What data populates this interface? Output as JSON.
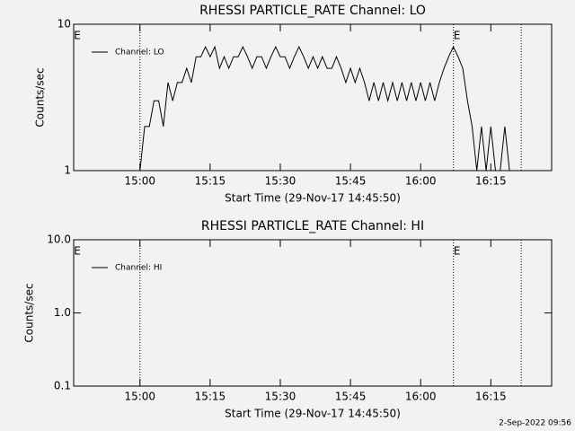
{
  "chart_data": [
    {
      "type": "line",
      "title": "RHESSI PARTICLE_RATE Channel: LO",
      "xlabel": "Start Time (29-Nov-17 14:45:50)",
      "ylabel": "Counts/sec",
      "yscale": "log",
      "ylim": [
        1,
        10
      ],
      "yticks": [
        1,
        10
      ],
      "xlim": [
        "14:45:50",
        "16:28"
      ],
      "xticks": [
        "15:00",
        "15:15",
        "15:30",
        "15:45",
        "16:00",
        "16:15"
      ],
      "vlines": [
        "15:00",
        "16:07",
        "16:21:30"
      ],
      "annotations": [
        {
          "text": "E",
          "x": "14:45:50"
        },
        {
          "text": "E",
          "x": "16:07"
        }
      ],
      "legend": "upper left",
      "x": [
        "15:00",
        "15:01",
        "15:02",
        "15:03",
        "15:04",
        "15:05",
        "15:06",
        "15:07",
        "15:08",
        "15:09",
        "15:10",
        "15:11",
        "15:12",
        "15:13",
        "15:14",
        "15:15",
        "15:16",
        "15:17",
        "15:18",
        "15:19",
        "15:20",
        "15:21",
        "15:22",
        "15:23",
        "15:24",
        "15:25",
        "15:26",
        "15:27",
        "15:28",
        "15:29",
        "15:30",
        "15:31",
        "15:32",
        "15:33",
        "15:34",
        "15:35",
        "15:36",
        "15:37",
        "15:38",
        "15:39",
        "15:40",
        "15:41",
        "15:42",
        "15:43",
        "15:44",
        "15:45",
        "15:46",
        "15:47",
        "15:48",
        "15:49",
        "15:50",
        "15:51",
        "15:52",
        "15:53",
        "15:54",
        "15:55",
        "15:56",
        "15:57",
        "15:58",
        "15:59",
        "16:00",
        "16:01",
        "16:02",
        "16:03",
        "16:04",
        "16:05",
        "16:06",
        "16:07",
        "16:08",
        "16:09",
        "16:10",
        "16:11",
        "16:12",
        "16:13",
        "16:14",
        "16:15",
        "16:16",
        "16:17",
        "16:18",
        "16:19",
        "16:20"
      ],
      "series": [
        {
          "name": "Channel: LO",
          "color": "#000000",
          "values": [
            1,
            2,
            2,
            3,
            3,
            2,
            4,
            3,
            4,
            4,
            5,
            4,
            6,
            6,
            7,
            6,
            7,
            5,
            6,
            5,
            6,
            6,
            7,
            6,
            5,
            6,
            6,
            5,
            6,
            7,
            6,
            6,
            5,
            6,
            7,
            6,
            5,
            6,
            5,
            6,
            5,
            5,
            6,
            5,
            4,
            5,
            4,
            5,
            4,
            3,
            4,
            3,
            4,
            3,
            4,
            3,
            4,
            3,
            4,
            3,
            4,
            3,
            4,
            3,
            4,
            5,
            6,
            7,
            6,
            5,
            3,
            2,
            1,
            2,
            1,
            2,
            1,
            1,
            2,
            1,
            1
          ]
        }
      ]
    },
    {
      "type": "line",
      "title": "RHESSI PARTICLE_RATE Channel: HI",
      "xlabel": "Start Time (29-Nov-17 14:45:50)",
      "ylabel": "Counts/sec",
      "yscale": "log",
      "ylim": [
        0.1,
        10
      ],
      "yticks": [
        0.1,
        {
          "value": 1,
          "label": "1.0"
        },
        {
          "value": 10,
          "label": "10.0"
        }
      ],
      "xlim": [
        "14:45:50",
        "16:28"
      ],
      "xticks": [
        "15:00",
        "15:15",
        "15:30",
        "15:45",
        "16:00",
        "16:15"
      ],
      "vlines": [
        "15:00",
        "16:07",
        "16:21:30"
      ],
      "annotations": [
        {
          "text": "E",
          "x": "14:45:50"
        },
        {
          "text": "E",
          "x": "16:07"
        }
      ],
      "legend": "upper left",
      "x": [],
      "series": [
        {
          "name": "Channel: HI",
          "color": "#000000",
          "values": []
        }
      ]
    }
  ],
  "footer": "2-Sep-2022 09:56"
}
